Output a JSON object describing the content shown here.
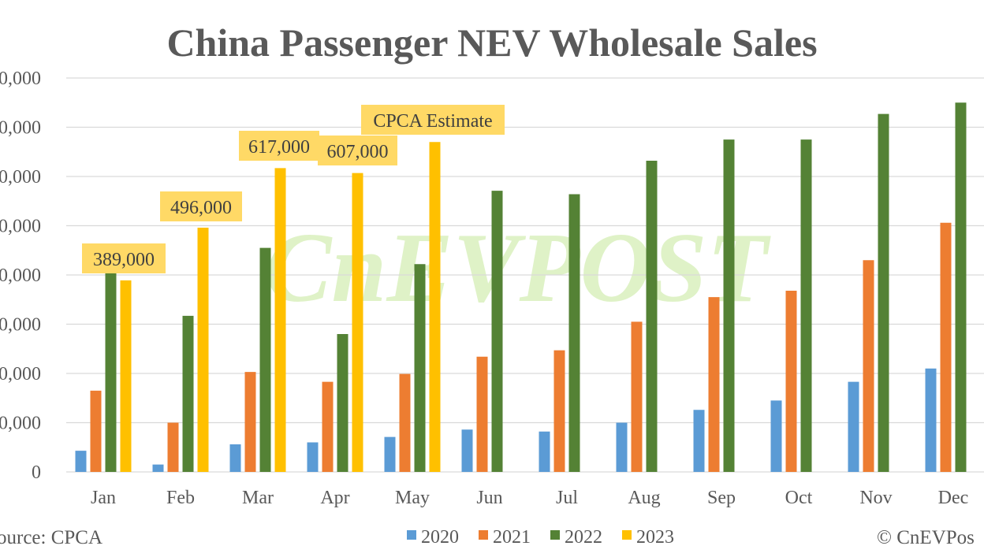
{
  "chart_data": {
    "type": "bar",
    "title": "China Passenger NEV Wholesale Sales",
    "xlabel": "",
    "ylabel": "",
    "categories": [
      "Jan",
      "Feb",
      "Mar",
      "Apr",
      "May",
      "Jun",
      "Jul",
      "Aug",
      "Sep",
      "Oct",
      "Nov",
      "Dec"
    ],
    "y_tick_labels": [
      "0",
      "0,000",
      "0,000",
      "0,000",
      "0,000",
      "0,000",
      "0,000",
      "0,000",
      "0,000"
    ],
    "ylim": [
      0,
      800000
    ],
    "y_tick_step": 100000,
    "grid": true,
    "legend_position": "bottom",
    "series": [
      {
        "name": "2020",
        "color": "#5b9bd5",
        "values": [
          43000,
          15000,
          56000,
          60000,
          71000,
          86000,
          82000,
          100000,
          126000,
          145000,
          183000,
          210000
        ]
      },
      {
        "name": "2021",
        "color": "#ed7d31",
        "values": [
          165000,
          100000,
          203000,
          183000,
          199000,
          234000,
          247000,
          305000,
          355000,
          368000,
          430000,
          506000
        ]
      },
      {
        "name": "2022",
        "color": "#548235",
        "values": [
          406000,
          317000,
          455000,
          280000,
          422000,
          571000,
          564000,
          632000,
          675000,
          675000,
          727000,
          750000
        ]
      },
      {
        "name": "2023",
        "color": "#ffc000",
        "values": [
          389000,
          496000,
          617000,
          607000,
          670000,
          null,
          null,
          null,
          null,
          null,
          null,
          null
        ]
      }
    ],
    "annotations": [
      {
        "text": "389,000",
        "category": "Jan"
      },
      {
        "text": "496,000",
        "category": "Feb"
      },
      {
        "text": "617,000",
        "category": "Mar"
      },
      {
        "text": "607,000",
        "category": "Apr"
      },
      {
        "text": "CPCA Estimate",
        "category": "May"
      }
    ],
    "source": "ource: CPCA",
    "credit": "© CnEVPos",
    "watermark": "CnEVPOST"
  },
  "colors": {
    "annotation_fill": "#ffd966",
    "grid": "#d9d9d9",
    "text": "#595959",
    "watermark": "#c5e89a"
  }
}
